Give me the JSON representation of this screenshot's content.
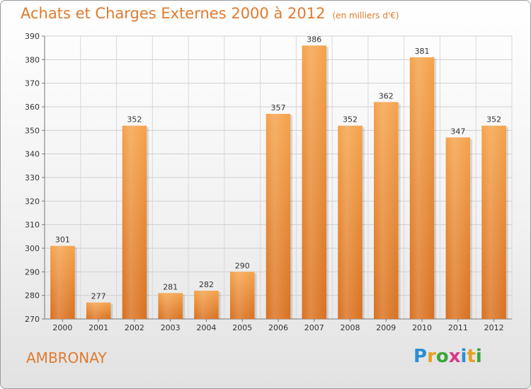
{
  "header": {
    "title": "Achats et Charges Externes 2000 à 2012",
    "unit": "(en milliers d'€)"
  },
  "footer": {
    "city": "AMBRONAY",
    "logo_letters": [
      "P",
      "r",
      "o",
      "x",
      "i",
      "t",
      "i"
    ],
    "logo_colors": [
      "#2a8fd6",
      "#e8a020",
      "#3aa63a",
      "#d83a8a",
      "#2a8fd6",
      "#e8a020",
      "#3aa63a"
    ]
  },
  "colors": {
    "accent": "#e07a2e",
    "bar_top": "#f5a24a",
    "bar_bottom": "#d9701f"
  },
  "chart_data": {
    "type": "bar",
    "title": "Achats et Charges Externes 2000 à 2012",
    "subtitle": "(en milliers d'€)",
    "categories": [
      "2000",
      "2001",
      "2002",
      "2003",
      "2004",
      "2005",
      "2006",
      "2007",
      "2008",
      "2009",
      "2010",
      "2011",
      "2012"
    ],
    "values": [
      301,
      277,
      352,
      281,
      282,
      290,
      357,
      386,
      352,
      362,
      381,
      347,
      352
    ],
    "ylim": [
      270,
      390
    ],
    "yticks": [
      270,
      280,
      290,
      300,
      310,
      320,
      330,
      340,
      350,
      360,
      370,
      380,
      390
    ],
    "grid": true,
    "xlabel": "",
    "ylabel": ""
  }
}
